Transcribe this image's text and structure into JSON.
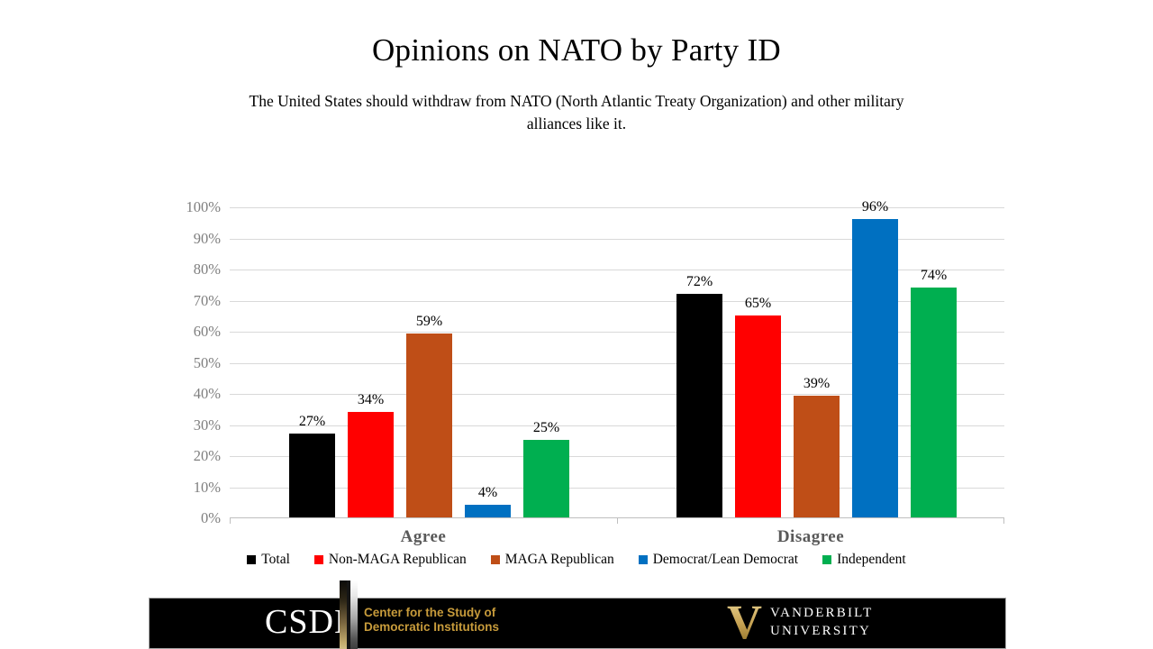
{
  "slide": {
    "title": "Opinions on NATO by Party ID",
    "subtitle": "The United States should withdraw from NATO (North Atlantic Treaty Organization) and other military alliances like it.",
    "subtitle_lines": [
      "The United States should withdraw from NATO (North Atlantic Treaty Organization) and other military",
      "alliances like it."
    ]
  },
  "chart_data": {
    "type": "bar",
    "categories": [
      "Agree",
      "Disagree"
    ],
    "series": [
      {
        "name": "Total",
        "color": "#000000",
        "values": [
          27,
          72
        ]
      },
      {
        "name": "Non-MAGA Republican",
        "color": "#FF0000",
        "values": [
          34,
          65
        ]
      },
      {
        "name": "MAGA Republican",
        "color": "#BF4E17",
        "values": [
          59,
          39
        ]
      },
      {
        "name": "Democrat/Lean Democrat",
        "color": "#0070C1",
        "values": [
          4,
          96
        ]
      },
      {
        "name": "Independent",
        "color": "#00AF50",
        "values": [
          25,
          74
        ]
      }
    ],
    "data_labels": [
      [
        "27%",
        "34%",
        "59%",
        "4%",
        "25%"
      ],
      [
        "72%",
        "65%",
        "39%",
        "96%",
        "74%"
      ]
    ],
    "ylim": [
      0,
      100
    ],
    "ytick_step": 10,
    "ytick_labels": [
      "0%",
      "10%",
      "20%",
      "30%",
      "40%",
      "50%",
      "60%",
      "70%",
      "80%",
      "90%",
      "100%"
    ],
    "value_suffix": "%",
    "grid": true,
    "legend_position": "bottom",
    "colors": {
      "gridline": "#D9D9D9",
      "axis": "#BFBFBF",
      "tick_label": "#7F7F7F",
      "category_label": "#595959"
    }
  },
  "footer": {
    "csdi_acronym": "CSDI",
    "csdi_line1": "Center for the Study of",
    "csdi_line2": "Democratic Institutions",
    "vu_line1": "VANDERBILT",
    "vu_line2": "UNIVERSITY",
    "gold_color": "#C79B3B"
  }
}
